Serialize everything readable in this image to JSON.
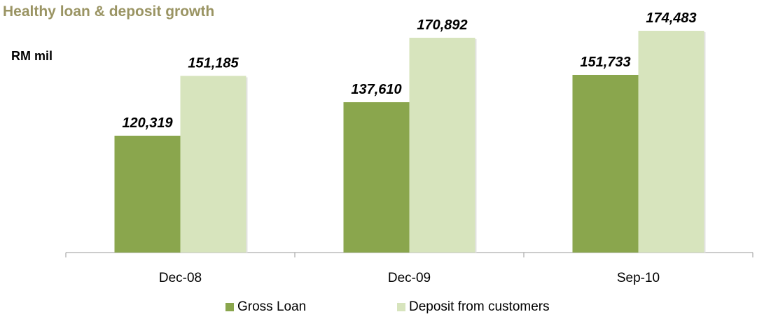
{
  "title": "Healthy loan & deposit growth",
  "unit_label": "RM mil",
  "colors": {
    "gross_loan": "#8aa64d",
    "deposit": "#d7e4bd",
    "axis": "#9a9a9a"
  },
  "chart_data": {
    "type": "bar",
    "categories": [
      "Dec-08",
      "Dec-09",
      "Sep-10"
    ],
    "series": [
      {
        "name": "Gross Loan",
        "values": [
          120319,
          137610,
          151733
        ],
        "labels": [
          "120,319",
          "137,610",
          "151,733"
        ]
      },
      {
        "name": "Deposit from customers",
        "values": [
          151185,
          170892,
          174483
        ],
        "labels": [
          "151,185",
          "170,892",
          "174,483"
        ]
      }
    ],
    "ylim": [
      60000,
      180000
    ],
    "grid": false,
    "legend": "bottom"
  }
}
